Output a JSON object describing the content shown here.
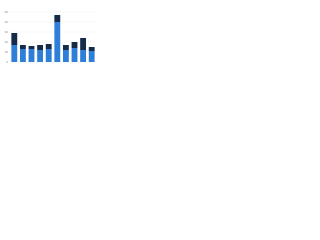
{
  "chart_data": {
    "type": "stacked-bar",
    "categories": [
      null,
      null,
      null,
      null,
      null,
      null,
      null,
      null,
      null,
      null
    ],
    "series": [
      {
        "color": "#2f7ed8",
        "values": [
          17,
          13,
          13,
          12,
          13,
          40,
          12,
          14,
          12,
          11
        ]
      },
      {
        "color": "#152b4a",
        "values": [
          12,
          4,
          3,
          5,
          5,
          7,
          5,
          6,
          12,
          4
        ]
      }
    ],
    "ylim": [
      0,
      50
    ],
    "yticks": [
      0,
      10,
      20,
      30,
      40,
      50
    ],
    "grid": true
  }
}
